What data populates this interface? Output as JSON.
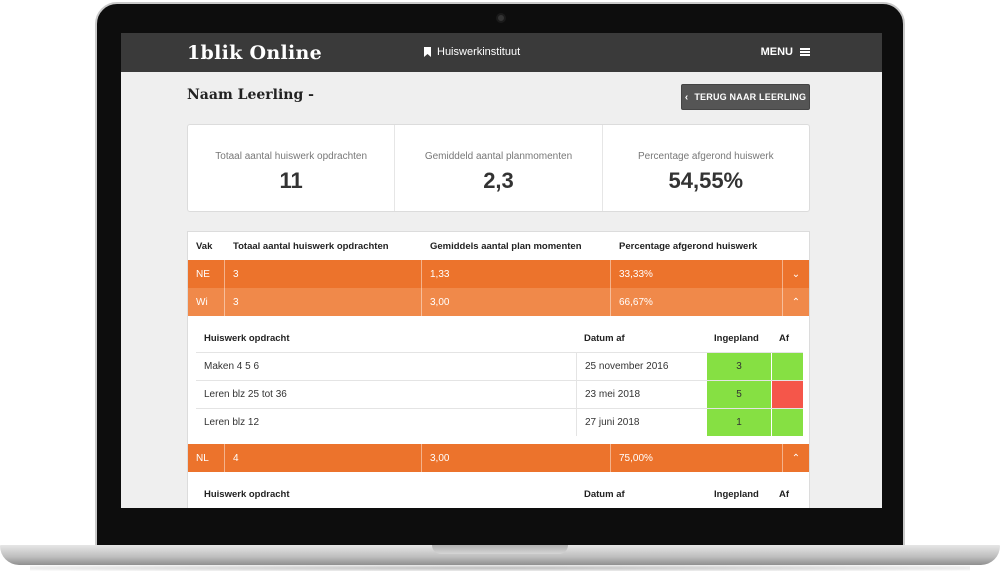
{
  "topbar": {
    "logo": "1blik Online",
    "section": "Huiswerkinstituut",
    "menu_label": "MENU"
  },
  "page": {
    "student_name": "Naam Leerling -",
    "back_button": "TERUG NAAR LEERLING"
  },
  "summary": [
    {
      "label": "Totaal aantal huiswerk opdrachten",
      "value": "11"
    },
    {
      "label": "Gemiddeld aantal planmomenten",
      "value": "2,3"
    },
    {
      "label": "Percentage afgerond huiswerk",
      "value": "54,55%"
    }
  ],
  "table": {
    "headers": [
      "Vak",
      "Totaal aantal huiswerk opdrachten",
      "Gemiddels aantal plan momenten",
      "Percentage afgerond huiswerk"
    ],
    "subjects": [
      {
        "vak": "NE",
        "total": "3",
        "avg": "1,33",
        "pct": "33,33%",
        "toggle": "⌄"
      },
      {
        "vak": "Wi",
        "total": "3",
        "avg": "3,00",
        "pct": "66,67%",
        "toggle": "⌃"
      },
      {
        "vak": "NL",
        "total": "4",
        "avg": "3,00",
        "pct": "75,00%",
        "toggle": "⌃"
      }
    ],
    "sub_headers": [
      "Huiswerk opdracht",
      "Datum af",
      "Ingepland",
      "Af"
    ],
    "wi_assignments": [
      {
        "name": "Maken 4 5 6",
        "date": "25 november 2016",
        "planned": "3",
        "done": "green"
      },
      {
        "name": "Leren blz 25 tot 36",
        "date": "23 mei 2018",
        "planned": "5",
        "done": "red"
      },
      {
        "name": "Leren blz 12",
        "date": "27 juni 2018",
        "planned": "1",
        "done": "green"
      }
    ]
  },
  "colors": {
    "topbar": "#3a3a3a",
    "orange": "#ec732c",
    "orange_light": "#f0894a",
    "status_green": "#86e043",
    "status_red": "#f5564a"
  }
}
